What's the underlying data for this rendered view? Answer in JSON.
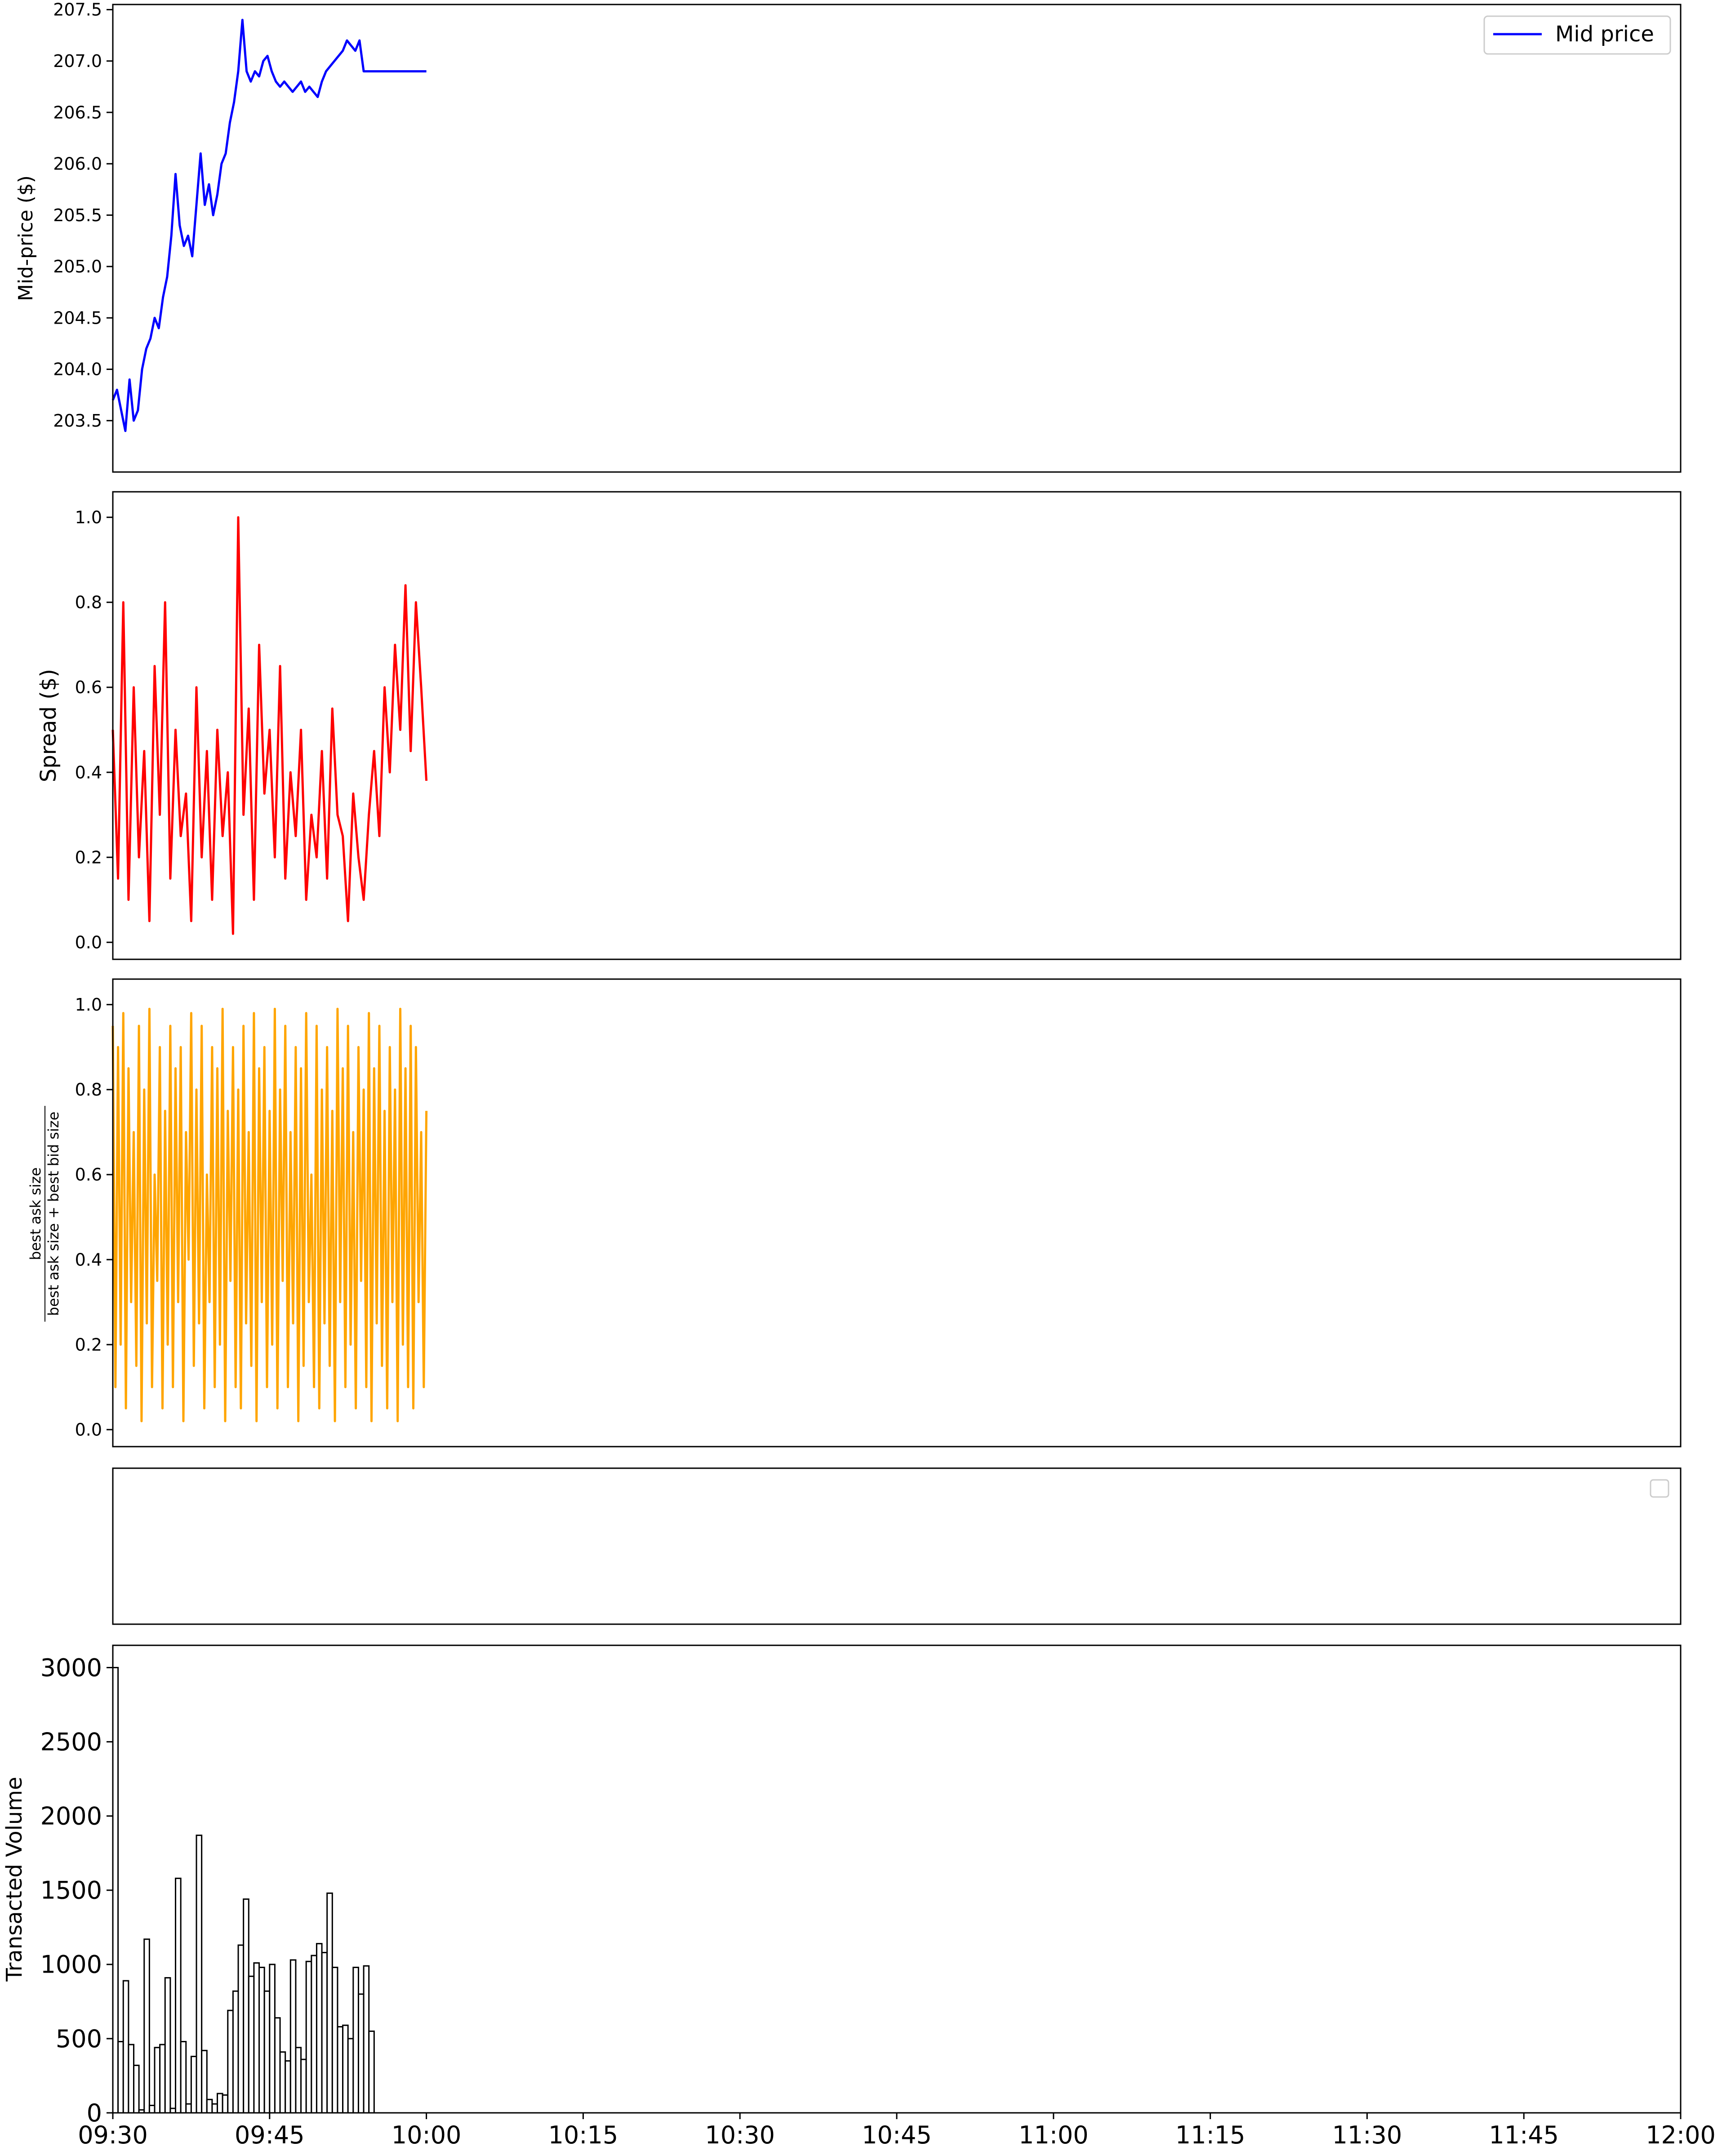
{
  "chart_data": [
    {
      "panel": "mid-price",
      "type": "line",
      "ylabel": "Mid-price ($)",
      "ylim": [
        203.0,
        207.55
      ],
      "yticks": [
        "203.5",
        "204.0",
        "204.5",
        "205.0",
        "205.5",
        "206.0",
        "206.5",
        "207.0",
        "207.5"
      ],
      "legend": {
        "label": "Mid price",
        "loc": "upper right"
      },
      "color": "#0000ff",
      "series": [
        {
          "name": "Mid price",
          "x": [
            0,
            0.4,
            0.8,
            1.2,
            1.6,
            2.0,
            2.4,
            2.8,
            3.2,
            3.6,
            4.0,
            4.4,
            4.8,
            5.2,
            5.6,
            6.0,
            6.4,
            6.8,
            7.2,
            7.6,
            8.0,
            8.4,
            8.8,
            9.2,
            9.6,
            10.0,
            10.4,
            10.8,
            11.2,
            11.6,
            12.0,
            12.4,
            12.8,
            13.2,
            13.6,
            14.0,
            14.4,
            14.8,
            15.2,
            15.6,
            16.0,
            16.4,
            16.8,
            17.2,
            17.6,
            18.0,
            18.4,
            18.8,
            19.2,
            19.6,
            20.0,
            20.4,
            20.8,
            21.2,
            21.6,
            22.0,
            22.4,
            22.8,
            23.2,
            23.6,
            24.0,
            24.4,
            24.8,
            25.2,
            25.6,
            26.0,
            26.4,
            26.8,
            27.2,
            27.6,
            28.0,
            28.4,
            28.8,
            29.2,
            29.6,
            30.0
          ],
          "y": [
            203.7,
            203.8,
            203.6,
            203.4,
            203.9,
            203.5,
            203.6,
            204.0,
            204.2,
            204.3,
            204.5,
            204.4,
            204.7,
            204.9,
            205.3,
            205.9,
            205.4,
            205.2,
            205.3,
            205.1,
            205.6,
            206.1,
            205.6,
            205.8,
            205.5,
            205.7,
            206.0,
            206.1,
            206.4,
            206.6,
            206.9,
            207.4,
            206.9,
            206.8,
            206.9,
            206.85,
            207.0,
            207.05,
            206.9,
            206.8,
            206.75,
            206.8,
            206.75,
            206.7,
            206.75,
            206.8,
            206.7,
            206.75,
            206.7,
            206.65,
            206.8,
            206.9,
            206.95,
            207.0,
            207.05,
            207.1,
            207.2,
            207.15,
            207.1,
            207.2,
            206.9,
            206.9,
            206.9,
            206.9,
            206.9,
            206.9,
            206.9,
            206.9,
            206.9,
            206.9,
            206.9,
            206.9,
            206.9,
            206.9,
            206.9,
            206.9
          ]
        }
      ]
    },
    {
      "panel": "spread",
      "type": "line",
      "ylabel": "Spread ($)",
      "ylim": [
        -0.04,
        1.06
      ],
      "yticks": [
        "0.0",
        "0.2",
        "0.4",
        "0.6",
        "0.8",
        "1.0"
      ],
      "color": "#ff0000",
      "series": [
        {
          "name": "",
          "x": [
            0,
            0.5,
            1.0,
            1.5,
            2.0,
            2.5,
            3.0,
            3.5,
            4.0,
            4.5,
            5.0,
            5.5,
            6.0,
            6.5,
            7.0,
            7.5,
            8.0,
            8.5,
            9.0,
            9.5,
            10.0,
            10.5,
            11.0,
            11.5,
            12.0,
            12.5,
            13.0,
            13.5,
            14.0,
            14.5,
            15.0,
            15.5,
            16.0,
            16.5,
            17.0,
            17.5,
            18.0,
            18.5,
            19.0,
            19.5,
            20.0,
            20.5,
            21.0,
            21.5,
            22.0,
            22.5,
            23.0,
            23.5,
            24.0,
            24.5,
            25.0,
            25.5,
            26.0,
            26.5,
            27.0,
            27.5,
            28.0,
            28.5,
            29.0,
            29.5,
            30.0
          ],
          "y": [
            0.5,
            0.15,
            0.8,
            0.1,
            0.6,
            0.2,
            0.45,
            0.05,
            0.65,
            0.3,
            0.8,
            0.15,
            0.5,
            0.25,
            0.35,
            0.05,
            0.6,
            0.2,
            0.45,
            0.1,
            0.5,
            0.25,
            0.4,
            0.02,
            1.0,
            0.3,
            0.55,
            0.1,
            0.7,
            0.35,
            0.5,
            0.2,
            0.65,
            0.15,
            0.4,
            0.25,
            0.5,
            0.1,
            0.3,
            0.2,
            0.45,
            0.15,
            0.55,
            0.3,
            0.25,
            0.05,
            0.35,
            0.2,
            0.1,
            0.3,
            0.45,
            0.25,
            0.6,
            0.4,
            0.7,
            0.5,
            0.84,
            0.45,
            0.8,
            0.6,
            0.38
          ]
        }
      ]
    },
    {
      "panel": "imbalance",
      "type": "line",
      "ylabel_numerator": "best ask size",
      "ylabel_denominator": "best ask size + best bid size",
      "ylim": [
        -0.04,
        1.06
      ],
      "yticks": [
        "0.0",
        "0.2",
        "0.4",
        "0.6",
        "0.8",
        "1.0"
      ],
      "color": "#ffa500",
      "series": [
        {
          "name": "",
          "x": [
            0,
            0.25,
            0.5,
            0.75,
            1.0,
            1.25,
            1.5,
            1.75,
            2.0,
            2.25,
            2.5,
            2.75,
            3.0,
            3.25,
            3.5,
            3.75,
            4.0,
            4.25,
            4.5,
            4.75,
            5.0,
            5.25,
            5.5,
            5.75,
            6.0,
            6.25,
            6.5,
            6.75,
            7.0,
            7.25,
            7.5,
            7.75,
            8.0,
            8.25,
            8.5,
            8.75,
            9.0,
            9.25,
            9.5,
            9.75,
            10.0,
            10.25,
            10.5,
            10.75,
            11.0,
            11.25,
            11.5,
            11.75,
            12.0,
            12.25,
            12.5,
            12.75,
            13.0,
            13.25,
            13.5,
            13.75,
            14.0,
            14.25,
            14.5,
            14.75,
            15.0,
            15.25,
            15.5,
            15.75,
            16.0,
            16.25,
            16.5,
            16.75,
            17.0,
            17.25,
            17.5,
            17.75,
            18.0,
            18.25,
            18.5,
            18.75,
            19.0,
            19.25,
            19.5,
            19.75,
            20.0,
            20.25,
            20.5,
            20.75,
            21.0,
            21.25,
            21.5,
            21.75,
            22.0,
            22.25,
            22.5,
            22.75,
            23.0,
            23.25,
            23.5,
            23.75,
            24.0,
            24.25,
            24.5,
            24.75,
            25.0,
            25.25,
            25.5,
            25.75,
            26.0,
            26.25,
            26.5,
            26.75,
            27.0,
            27.25,
            27.5,
            27.75,
            28.0,
            28.25,
            28.5,
            28.75,
            29.0,
            29.25,
            29.5,
            29.75,
            30.0
          ],
          "y": [
            0.95,
            0.1,
            0.9,
            0.2,
            0.98,
            0.05,
            0.85,
            0.3,
            0.7,
            0.15,
            0.95,
            0.02,
            0.8,
            0.25,
            0.99,
            0.1,
            0.6,
            0.35,
            0.9,
            0.05,
            0.75,
            0.2,
            0.95,
            0.1,
            0.85,
            0.3,
            0.9,
            0.02,
            0.7,
            0.4,
            0.98,
            0.15,
            0.8,
            0.25,
            0.95,
            0.05,
            0.6,
            0.3,
            0.9,
            0.1,
            0.85,
            0.2,
            0.99,
            0.02,
            0.75,
            0.35,
            0.9,
            0.1,
            0.8,
            0.05,
            0.95,
            0.25,
            0.7,
            0.15,
            0.98,
            0.02,
            0.85,
            0.3,
            0.9,
            0.1,
            0.75,
            0.2,
            0.99,
            0.05,
            0.8,
            0.35,
            0.95,
            0.1,
            0.7,
            0.25,
            0.9,
            0.02,
            0.85,
            0.15,
            0.98,
            0.3,
            0.6,
            0.1,
            0.95,
            0.05,
            0.8,
            0.25,
            0.9,
            0.15,
            0.75,
            0.02,
            0.99,
            0.3,
            0.85,
            0.1,
            0.95,
            0.2,
            0.7,
            0.05,
            0.9,
            0.35,
            0.8,
            0.1,
            0.98,
            0.02,
            0.85,
            0.25,
            0.95,
            0.15,
            0.75,
            0.05,
            0.9,
            0.3,
            0.8,
            0.02,
            0.99,
            0.2,
            0.85,
            0.1,
            0.95,
            0.05,
            0.9,
            0.3,
            0.7,
            0.1,
            0.75
          ]
        }
      ]
    },
    {
      "panel": "empty",
      "type": "line",
      "series": [],
      "legend": {
        "label": "",
        "loc": "upper right"
      }
    },
    {
      "panel": "volume",
      "type": "bar",
      "ylabel": "Transacted Volume",
      "ylim": [
        0,
        3150
      ],
      "yticks": [
        "0",
        "500",
        "1000",
        "1500",
        "2000",
        "2500",
        "3000"
      ],
      "xlim": [
        "09:30",
        "12:00"
      ],
      "xticks": [
        "09:30",
        "09:45",
        "10:00",
        "10:15",
        "10:30",
        "10:45",
        "11:00",
        "11:15",
        "11:30",
        "11:45",
        "12:00"
      ],
      "bar_width_minutes": 0.5,
      "color": "#ffffff",
      "edge_color": "#000000",
      "x": [
        0,
        0.5,
        1,
        1.5,
        2,
        2.5,
        3,
        3.5,
        4,
        4.5,
        5,
        5.5,
        6,
        6.5,
        7,
        7.5,
        8,
        8.5,
        9,
        9.5,
        10,
        10.5,
        11,
        11.5,
        12,
        12.5,
        13,
        13.5,
        14,
        14.5,
        15,
        15.5,
        16,
        16.5,
        17,
        17.5,
        18,
        18.5,
        19,
        19.5,
        20,
        20.5,
        21,
        21.5,
        22,
        22.5,
        23,
        23.5,
        24,
        24.5,
        25,
        25.5,
        26,
        26.5,
        27,
        27.5,
        28,
        28.5,
        29,
        29.5
      ],
      "values": [
        3000,
        480,
        890,
        460,
        320,
        20,
        1170,
        50,
        440,
        460,
        910,
        30,
        1580,
        480,
        60,
        380,
        1870,
        420,
        90,
        60,
        130,
        120,
        690,
        820,
        1130,
        1440,
        920,
        1010,
        980,
        820,
        1000,
        640,
        410,
        350,
        1030,
        440,
        360,
        1020,
        1060,
        1140,
        1080,
        1480,
        980,
        580,
        590,
        500,
        980,
        800,
        990,
        550,
        0,
        0,
        0,
        0,
        0,
        0,
        0,
        0,
        0,
        0
      ]
    }
  ]
}
